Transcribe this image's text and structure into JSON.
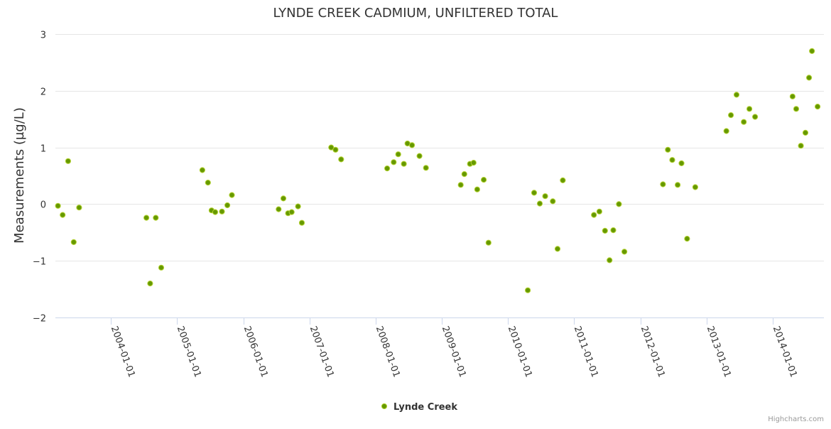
{
  "chart_data": {
    "type": "scatter",
    "title": "LYNDE CREEK CADMIUM, UNFILTERED TOTAL",
    "ylabel": "Measurements (µg/L)",
    "xlabel": "",
    "ylim": [
      -2,
      3
    ],
    "yticks": [
      "−2",
      "−1",
      "0",
      "1",
      "2",
      "3"
    ],
    "ytick_values": [
      -2,
      -1,
      0,
      1,
      2,
      3
    ],
    "xlim": [
      "2003-03-01",
      "2014-10-10"
    ],
    "xticks": [
      "2004-01-01",
      "2005-01-01",
      "2006-01-01",
      "2007-01-01",
      "2008-01-01",
      "2009-01-01",
      "2010-01-01",
      "2011-01-01",
      "2012-01-01",
      "2013-01-01",
      "2014-01-01"
    ],
    "grid": "horizontal",
    "legend_position": "bottom-center",
    "marker_color": "#669900",
    "marker_edge_color": "#B5D334",
    "series": [
      {
        "name": "Lynde Creek",
        "points": [
          [
            "2003-03-15",
            -0.03
          ],
          [
            "2003-04-10",
            -0.19
          ],
          [
            "2003-05-10",
            0.76
          ],
          [
            "2003-06-10",
            -0.67
          ],
          [
            "2003-07-10",
            -0.06
          ],
          [
            "2004-07-15",
            -0.24
          ],
          [
            "2004-08-05",
            -1.4
          ],
          [
            "2004-09-05",
            -0.24
          ],
          [
            "2004-10-05",
            -1.12
          ],
          [
            "2005-05-20",
            0.6
          ],
          [
            "2005-06-20",
            0.38
          ],
          [
            "2005-07-10",
            -0.11
          ],
          [
            "2005-07-30",
            -0.14
          ],
          [
            "2005-09-05",
            -0.13
          ],
          [
            "2005-10-05",
            -0.02
          ],
          [
            "2005-10-30",
            0.16
          ],
          [
            "2006-07-15",
            -0.09
          ],
          [
            "2006-08-10",
            0.1
          ],
          [
            "2006-09-05",
            -0.16
          ],
          [
            "2006-09-25",
            -0.14
          ],
          [
            "2006-10-30",
            -0.04
          ],
          [
            "2006-11-20",
            -0.33
          ],
          [
            "2007-05-01",
            1.0
          ],
          [
            "2007-05-25",
            0.96
          ],
          [
            "2007-06-25",
            0.79
          ],
          [
            "2008-03-05",
            0.63
          ],
          [
            "2008-04-10",
            0.74
          ],
          [
            "2008-05-05",
            0.88
          ],
          [
            "2008-06-05",
            0.71
          ],
          [
            "2008-06-25",
            1.07
          ],
          [
            "2008-07-20",
            1.04
          ],
          [
            "2008-08-30",
            0.85
          ],
          [
            "2008-10-05",
            0.64
          ],
          [
            "2009-04-15",
            0.34
          ],
          [
            "2009-05-05",
            0.53
          ],
          [
            "2009-06-05",
            0.71
          ],
          [
            "2009-06-25",
            0.73
          ],
          [
            "2009-07-15",
            0.26
          ],
          [
            "2009-08-20",
            0.43
          ],
          [
            "2009-09-15",
            -0.68
          ],
          [
            "2010-04-20",
            -1.52
          ],
          [
            "2010-05-25",
            0.2
          ],
          [
            "2010-06-25",
            0.01
          ],
          [
            "2010-07-25",
            0.14
          ],
          [
            "2010-09-05",
            0.05
          ],
          [
            "2010-10-01",
            -0.79
          ],
          [
            "2010-10-30",
            0.42
          ],
          [
            "2011-04-20",
            -0.19
          ],
          [
            "2011-05-20",
            -0.13
          ],
          [
            "2011-06-20",
            -0.47
          ],
          [
            "2011-07-15",
            -0.99
          ],
          [
            "2011-08-05",
            -0.46
          ],
          [
            "2011-09-05",
            0.0
          ],
          [
            "2011-10-05",
            -0.84
          ],
          [
            "2012-05-05",
            0.35
          ],
          [
            "2012-06-01",
            0.96
          ],
          [
            "2012-06-25",
            0.78
          ],
          [
            "2012-07-25",
            0.34
          ],
          [
            "2012-08-15",
            0.72
          ],
          [
            "2012-09-15",
            -0.61
          ],
          [
            "2012-10-30",
            0.3
          ],
          [
            "2013-04-20",
            1.29
          ],
          [
            "2013-05-15",
            1.57
          ],
          [
            "2013-06-15",
            1.93
          ],
          [
            "2013-07-25",
            1.45
          ],
          [
            "2013-08-25",
            1.68
          ],
          [
            "2013-09-25",
            1.54
          ],
          [
            "2014-04-20",
            1.9
          ],
          [
            "2014-05-10",
            1.68
          ],
          [
            "2014-06-05",
            1.03
          ],
          [
            "2014-06-30",
            1.26
          ],
          [
            "2014-07-20",
            2.23
          ],
          [
            "2014-08-05",
            2.7
          ],
          [
            "2014-09-05",
            1.72
          ]
        ]
      }
    ]
  },
  "credits": "Highcharts.com"
}
